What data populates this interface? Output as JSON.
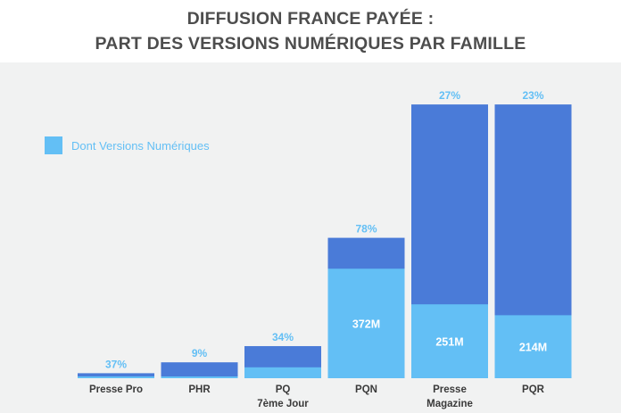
{
  "title": {
    "line1": "DIFFUSION FRANCE PAYÉE :",
    "line2": "PART DES VERSIONS NUMÉRIQUES PAR FAMILLE"
  },
  "colors": {
    "total": "#4a7bd8",
    "digital": "#63bff5",
    "background": "#f1f2f2"
  },
  "chart_data": {
    "type": "bar",
    "stacked": true,
    "title": "DIFFUSION FRANCE PAYÉE : PART DES VERSIONS NUMÉRIQUES PAR FAMILLE",
    "legend": {
      "entries": [
        "Dont Versions Numériques"
      ],
      "placement": "top-left"
    },
    "categories": [
      [
        "Presse Pro"
      ],
      [
        "PHR"
      ],
      [
        "PQ",
        "7ème Jour"
      ],
      [
        "PQN"
      ],
      [
        "Presse",
        "Magazine"
      ],
      [
        "PQR"
      ]
    ],
    "total_values_M": [
      17,
      54,
      109,
      477,
      930,
      930
    ],
    "digital_values_M": [
      6.3,
      4.9,
      37,
      372,
      251,
      214
    ],
    "percent_labels": [
      "37%",
      "9%",
      "34%",
      "78%",
      "27%",
      "23%"
    ],
    "digital_value_labels": [
      "",
      "",
      "",
      "372M",
      "251M",
      "214M"
    ],
    "ylim": [
      0,
      1000
    ],
    "grid": false
  }
}
